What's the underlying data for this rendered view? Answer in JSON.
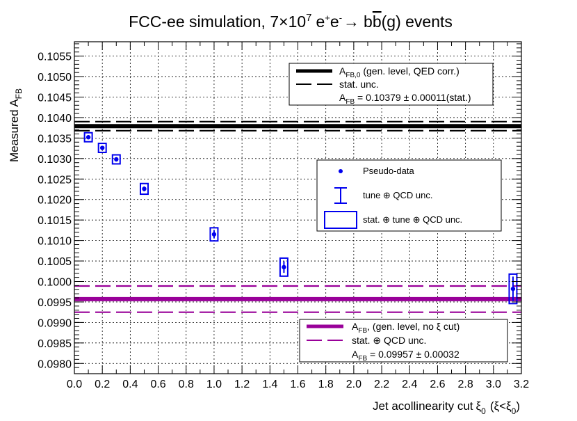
{
  "chart_data": {
    "type": "scatter",
    "title": "FCC-ee simulation, 7×10⁷ e⁺e⁻→ bb̄(g) events",
    "title_parts": {
      "main": "FCC-ee simulation, 7",
      "times": "×",
      "ten": "10",
      "exp": "7",
      "proc": "e",
      "proc_plus": "+",
      "proc2": "e",
      "proc_minus": "-",
      "arrow": "→",
      "b1": "b",
      "bbar": "b",
      "tail": "(g) events"
    },
    "xlabel": "Jet acollinearity cut ξ₀ (ξ<ξ₀)",
    "xlabel_parts": {
      "main": "Jet acollinearity cut",
      "xi": "ξ",
      "sub0": "0",
      "paren_open": "(ξ<ξ",
      "sub1": "0",
      "paren_close": ")"
    },
    "ylabel": "Measured A_FB",
    "ylabel_parts": {
      "main": "Measured A",
      "sub": "FB"
    },
    "xlim": [
      0.0,
      3.2
    ],
    "ylim": [
      0.09775,
      0.10585
    ],
    "x_ticks": [
      0.0,
      0.2,
      0.4,
      0.6,
      0.8,
      1.0,
      1.2,
      1.4,
      1.6,
      1.8,
      2.0,
      2.2,
      2.4,
      2.6,
      2.8,
      3.0,
      3.2
    ],
    "x_tick_labels": [
      "0.0",
      "0.2",
      "0.4",
      "0.6",
      "0.8",
      "1.0",
      "1.2",
      "1.4",
      "1.6",
      "1.8",
      "2.0",
      "2.2",
      "2.4",
      "2.6",
      "2.8",
      "3.0",
      "3.2"
    ],
    "y_ticks": [
      0.098,
      0.0985,
      0.099,
      0.0995,
      0.1,
      0.1005,
      0.101,
      0.1015,
      0.102,
      0.1025,
      0.103,
      0.1035,
      0.104,
      0.1045,
      0.105,
      0.1055
    ],
    "y_tick_labels": [
      "0.0980",
      "0.0985",
      "0.0990",
      "0.0995",
      "0.1000",
      "0.1005",
      "0.1010",
      "0.1015",
      "0.1020",
      "0.1025",
      "0.1030",
      "0.1035",
      "0.1040",
      "0.1045",
      "0.1050",
      "0.1055"
    ],
    "grid": true,
    "series": [
      {
        "name": "Pseudo-data",
        "color": "#0000ee",
        "x": [
          0.1,
          0.2,
          0.3,
          0.5,
          1.0,
          1.5,
          3.14
        ],
        "y": [
          0.10352,
          0.10326,
          0.10298,
          0.10226,
          0.10115,
          0.10035,
          0.09982
        ],
        "tune_qcd_unc": [
          5e-05,
          4e-05,
          4e-05,
          6e-05,
          0.0001,
          0.00014,
          0.0003
        ],
        "stat_tune_qcd_unc": [
          0.00011,
          0.00011,
          0.00011,
          0.00013,
          0.00016,
          0.00022,
          0.00036
        ]
      }
    ],
    "reference_lines": [
      {
        "name": "A_FB,0 (gen. level, QED corr.)",
        "color": "#000000",
        "value": 0.10379,
        "unc": 0.00011
      },
      {
        "name": "A_FB (gen. level, no ξ cut)",
        "color": "#990099",
        "value": 0.09957,
        "unc": 0.00032
      }
    ]
  },
  "legend_top": {
    "entry1_main": "A",
    "entry1_sub": "FB,0",
    "entry1_rest": " (gen. level, QED corr.)",
    "entry2": "stat. unc.",
    "entry3_main": "A",
    "entry3_sub": "FB",
    "entry3_rest": " = 0.10379 ± 0.00011(stat.)"
  },
  "legend_mid": {
    "entry1": "Pseudo-data",
    "entry2": "tune ⊕ QCD unc.",
    "entry3": "stat. ⊕ tune ⊕ QCD unc."
  },
  "legend_bottom": {
    "entry1_main": "A",
    "entry1_sub": "FB",
    "entry1_rest": ", (gen. level, no ξ cut)",
    "entry2": "stat. ⊕ QCD unc.",
    "entry3_main": "A",
    "entry3_sub": "FB",
    "entry3_rest": " = 0.09957 ± 0.00032"
  },
  "colors": {
    "data": "#0000ee",
    "reference": "#000000",
    "nocut": "#990099",
    "grid": "#000000"
  }
}
